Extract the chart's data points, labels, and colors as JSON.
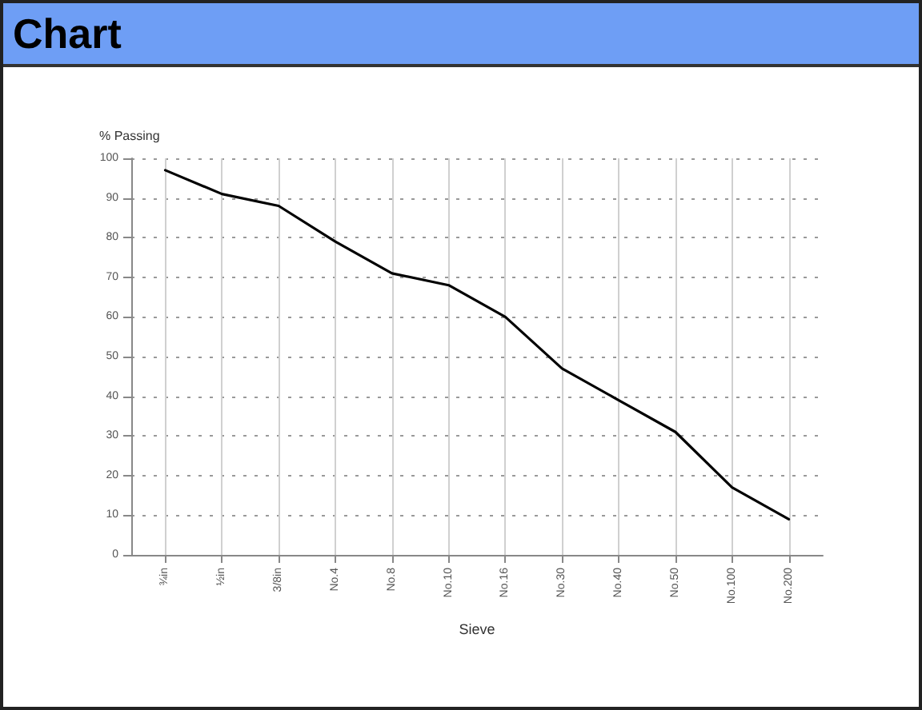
{
  "chart_data": {
    "type": "line",
    "title": "Chart",
    "xlabel": "Sieve",
    "ylabel": "% Passing",
    "categories": [
      "¾in",
      "½in",
      "3/8in",
      "No.4",
      "No.8",
      "No.10",
      "No.16",
      "No.30",
      "No.40",
      "No.50",
      "No.100",
      "No.200"
    ],
    "values": [
      97,
      91,
      88,
      79,
      71,
      68,
      60,
      47,
      39,
      31,
      17,
      9
    ],
    "color": "#000000",
    "ylim": [
      0,
      100
    ],
    "yticks": [
      0,
      10,
      20,
      30,
      40,
      50,
      60,
      70,
      80,
      90,
      100
    ],
    "grid": true,
    "marker": "none",
    "line_style": "solid"
  }
}
